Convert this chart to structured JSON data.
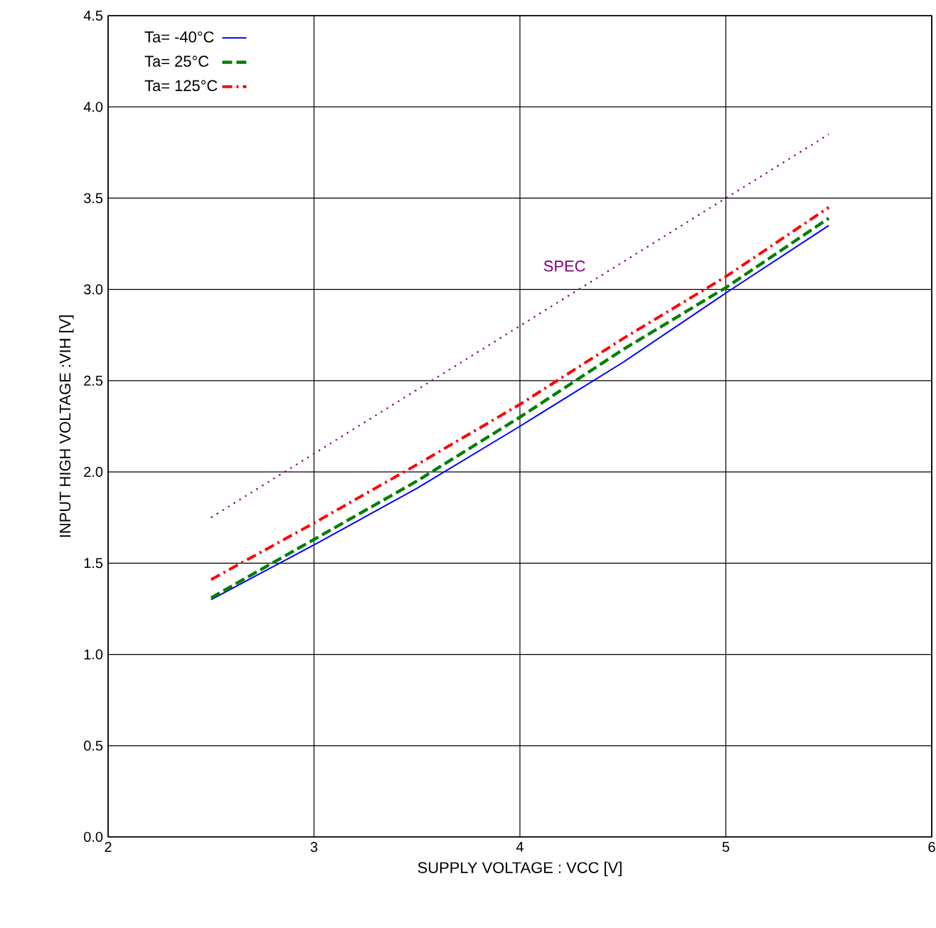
{
  "chart_data": {
    "type": "line",
    "xlabel": "SUPPLY VOLTAGE : VCC [V]",
    "ylabel": "INPUT HIGH VOLTAGE :VIH [V]",
    "x": [
      2.5,
      3,
      3.5,
      4,
      4.5,
      5,
      5.5
    ],
    "series": [
      {
        "name": "Ta= -40°C",
        "color": "#0000ff",
        "line_style": "solid",
        "values": [
          1.3,
          1.6,
          1.91,
          2.25,
          2.6,
          2.98,
          3.35
        ]
      },
      {
        "name": "Ta=  25°C",
        "color": "#008000",
        "line_style": "dashed",
        "values": [
          1.31,
          1.63,
          1.95,
          2.3,
          2.67,
          3.01,
          3.39
        ]
      },
      {
        "name": "Ta= 125°C",
        "color": "#ff0000",
        "line_style": "dashdot",
        "values": [
          1.41,
          1.72,
          2.04,
          2.37,
          2.73,
          3.07,
          3.45
        ]
      },
      {
        "name": "SPEC",
        "color": "#800080",
        "line_style": "dotted",
        "x": [
          2.5,
          5.5
        ],
        "values": [
          1.75,
          3.85
        ]
      }
    ],
    "xlim": [
      2,
      6
    ],
    "ylim": [
      0,
      4.5
    ],
    "xticks": [
      2,
      3,
      4,
      5,
      6
    ],
    "yticks": [
      {
        "value": 0,
        "label": "0.0"
      },
      {
        "value": 0.5,
        "label": "0.5"
      },
      {
        "value": 1,
        "label": "1.0"
      },
      {
        "value": 1.5,
        "label": "1.5"
      },
      {
        "value": 2,
        "label": "2.0"
      },
      {
        "value": 2.5,
        "label": "2.5"
      },
      {
        "value": 3,
        "label": "3.0"
      },
      {
        "value": 3.5,
        "label": "3.5"
      },
      {
        "value": 4,
        "label": "4.0"
      },
      {
        "value": 4.5,
        "label": "4.5"
      }
    ],
    "grid": true,
    "legend": "top left"
  }
}
